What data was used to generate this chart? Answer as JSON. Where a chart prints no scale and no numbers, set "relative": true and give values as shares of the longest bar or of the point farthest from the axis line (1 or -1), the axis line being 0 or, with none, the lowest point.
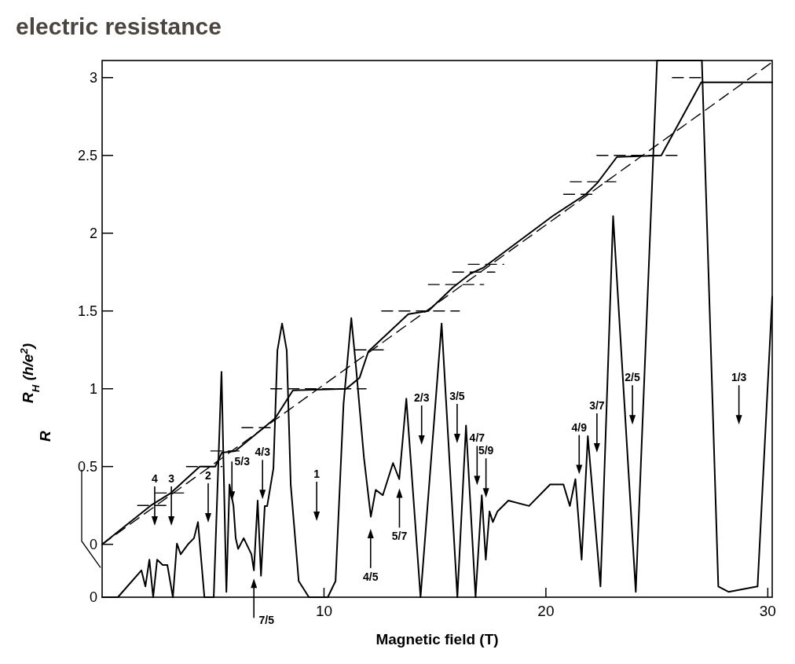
{
  "chart_data": [
    {
      "type": "line",
      "title": "electric resistance",
      "xlabel": "Magnetic field (T)",
      "ylabel": "R$_{H}$ (h/e$^{2}$)",
      "xlim": [
        0,
        30.2
      ],
      "xticks": [
        10,
        20,
        30
      ],
      "ylim": [
        -0.34,
        3.11
      ],
      "yticks": [
        0,
        0.5,
        1,
        1.5,
        2,
        2.5,
        3
      ],
      "series": [
        {
          "color": "#000000",
          "line_style": "solid",
          "x": [
            0,
            2.2,
            3.1,
            4.4,
            5.1,
            5.4,
            6.0,
            7.2,
            7.8,
            8.6,
            11.0,
            11.6,
            12.0,
            13.8,
            14.7,
            15.8,
            16.6,
            17.2,
            20.3,
            21.8,
            22.3,
            23.2,
            25.2,
            27.0,
            30.2
          ],
          "values": [
            0,
            0.25,
            0.33,
            0.5,
            0.5,
            0.59,
            0.6,
            0.74,
            0.81,
            0.99,
            1.0,
            1.07,
            1.24,
            1.48,
            1.5,
            1.65,
            1.74,
            1.78,
            2.11,
            2.25,
            2.32,
            2.49,
            2.5,
            2.97,
            2.97
          ]
        },
        {
          "color": "#000000",
          "line_style": "dashed",
          "x": [
            0,
            30.2
          ],
          "values": [
            0,
            3.1
          ]
        },
        {
          "color": "#000000",
          "line_style": "dashed",
          "x": [
            1.6,
            2.9
          ],
          "values": [
            0.25,
            0.25
          ]
        },
        {
          "color": "#000000",
          "line_style": "dashed",
          "x": [
            2.4,
            3.8
          ],
          "values": [
            0.33,
            0.33
          ]
        },
        {
          "color": "#000000",
          "line_style": "dashed",
          "x": [
            3.8,
            5.4
          ],
          "values": [
            0.5,
            0.5
          ]
        },
        {
          "color": "#000000",
          "line_style": "dashed",
          "x": [
            4.9,
            6.3
          ],
          "values": [
            0.6,
            0.6
          ]
        },
        {
          "color": "#000000",
          "line_style": "dashed",
          "x": [
            6.3,
            7.7
          ],
          "values": [
            0.75,
            0.75
          ]
        },
        {
          "color": "#000000",
          "line_style": "dashed",
          "x": [
            7.6,
            11.9
          ],
          "values": [
            1,
            1
          ]
        },
        {
          "color": "#000000",
          "line_style": "dashed",
          "x": [
            11.4,
            12.7
          ],
          "values": [
            1.25,
            1.25
          ]
        },
        {
          "color": "#000000",
          "line_style": "dashed",
          "x": [
            12.6,
            16.1
          ],
          "values": [
            1.5,
            1.5
          ]
        },
        {
          "color": "#000000",
          "line_style": "dashed",
          "x": [
            14.7,
            17.2
          ],
          "values": [
            1.67,
            1.67
          ]
        },
        {
          "color": "#000000",
          "line_style": "dashed",
          "x": [
            15.8,
            17.7
          ],
          "values": [
            1.75,
            1.75
          ]
        },
        {
          "color": "#000000",
          "line_style": "dashed",
          "x": [
            16.5,
            18.1
          ],
          "values": [
            1.8,
            1.8
          ]
        },
        {
          "color": "#000000",
          "line_style": "dashed",
          "x": [
            20.8,
            22.2
          ],
          "values": [
            2.25,
            2.25
          ]
        },
        {
          "color": "#000000",
          "line_style": "dashed",
          "x": [
            21.1,
            23.2
          ],
          "values": [
            2.33,
            2.33
          ]
        },
        {
          "color": "#000000",
          "line_style": "dashed",
          "x": [
            22.3,
            26.0
          ],
          "values": [
            2.5,
            2.5
          ]
        },
        {
          "color": "#000000",
          "line_style": "dashed",
          "x": [
            25.7,
            27.0
          ],
          "values": [
            3,
            3
          ]
        }
      ]
    },
    {
      "type": "line",
      "relative": true,
      "ylabel": "R",
      "xlim": [
        0,
        30.2
      ],
      "series": [
        {
          "color": "#000000",
          "line_style": "solid",
          "x": [
            0,
            0.71,
            1.77,
            1.95,
            2.13,
            2.3,
            2.48,
            2.73,
            2.94,
            3.19,
            3.37,
            3.54,
            3.9,
            4.14,
            4.32,
            4.61,
            5.03,
            5.38,
            5.6,
            5.74,
            5.92,
            6.02,
            6.13,
            6.38,
            6.73,
            6.84,
            7.01,
            7.16,
            7.33,
            7.44,
            7.72,
            7.9,
            8.11,
            8.32,
            8.5,
            8.86,
            9.32,
            10.17,
            10.52,
            10.88,
            11.23,
            11.44,
            11.8,
            12.11,
            12.33,
            12.65,
            13.11,
            13.39,
            13.71,
            14.35,
            15.3,
            16.01,
            16.4,
            16.83,
            17.11,
            17.29,
            17.46,
            17.61,
            17.82,
            18.31,
            19.24,
            20.19,
            20.79,
            21.08,
            21.33,
            21.61,
            21.89,
            22.46,
            23.03,
            24.05,
            25.01,
            27.03,
            27.77,
            28.23,
            29.54,
            30.2
          ],
          "values": [
            0,
            0,
            0.05,
            0.02,
            0.07,
            0,
            0.07,
            0.06,
            0.06,
            0,
            0.1,
            0.08,
            0.1,
            0.11,
            0.14,
            0,
            0,
            0.42,
            0.01,
            0.21,
            0.17,
            0.11,
            0.09,
            0.11,
            0.08,
            0.05,
            0.18,
            0.04,
            0.17,
            0.17,
            0.24,
            0.46,
            0.51,
            0.46,
            0.21,
            0.03,
            0,
            0,
            0.03,
            0.36,
            0.52,
            0.43,
            0.26,
            0.15,
            0.2,
            0.19,
            0.25,
            0.22,
            0.37,
            0,
            0.51,
            0,
            0.32,
            0,
            0.19,
            0.07,
            0.16,
            0.14,
            0.16,
            0.18,
            0.17,
            0.21,
            0.21,
            0.17,
            0.22,
            0.07,
            0.3,
            0.02,
            0.71,
            0.01,
            1,
            1,
            0.02,
            0.01,
            0.02,
            0.56
          ]
        }
      ],
      "annotations": [
        "0",
        "4",
        "3",
        "2",
        "5/3",
        "7/5",
        "4/3",
        "1",
        "4/5",
        "5/7",
        "2/3",
        "3/5",
        "4/7",
        "5/9",
        "4/9",
        "3/7",
        "2/5",
        "1/3"
      ]
    }
  ]
}
